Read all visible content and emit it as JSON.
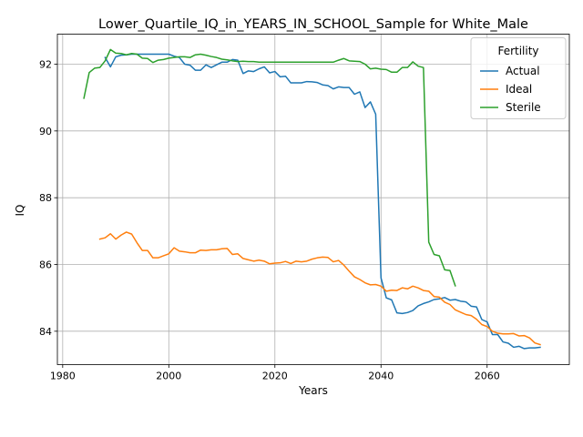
{
  "chart_data": {
    "type": "line",
    "title": "Lower_Quartile_IQ_in_YEARS_IN_SCHOOL_Sample for White_Male",
    "xlabel": "Years",
    "ylabel": "IQ",
    "xlim": [
      1979,
      2075.5
    ],
    "ylim": [
      83.0,
      92.9
    ],
    "xticks": [
      1980,
      2000,
      2020,
      2040,
      2060
    ],
    "yticks": [
      84,
      86,
      88,
      90,
      92
    ],
    "grid": true,
    "legend": {
      "title": "Fertility",
      "placement": "top-right"
    },
    "series": [
      {
        "name": "Actual",
        "color": "#1f77b4",
        "points": [
          [
            1988,
            92.2
          ],
          [
            1989,
            91.92
          ],
          [
            1990,
            92.22
          ],
          [
            1991,
            92.27
          ],
          [
            1992,
            92.28
          ],
          [
            1993,
            92.3
          ],
          [
            1994,
            92.3
          ],
          [
            1996,
            92.3
          ],
          [
            1998,
            92.3
          ],
          [
            2000,
            92.3
          ],
          [
            2001,
            92.24
          ],
          [
            2002,
            92.2
          ],
          [
            2003,
            92.0
          ],
          [
            2004,
            91.97
          ],
          [
            2005,
            91.82
          ],
          [
            2006,
            91.82
          ],
          [
            2007,
            91.98
          ],
          [
            2008,
            91.9
          ],
          [
            2009,
            91.98
          ],
          [
            2010,
            92.06
          ],
          [
            2011,
            92.06
          ],
          [
            2012,
            92.14
          ],
          [
            2013,
            92.12
          ],
          [
            2014,
            91.72
          ],
          [
            2015,
            91.8
          ],
          [
            2016,
            91.78
          ],
          [
            2017,
            91.86
          ],
          [
            2018,
            91.92
          ],
          [
            2019,
            91.74
          ],
          [
            2020,
            91.78
          ],
          [
            2021,
            91.62
          ],
          [
            2022,
            91.64
          ],
          [
            2023,
            91.44
          ],
          [
            2024,
            91.44
          ],
          [
            2025,
            91.44
          ],
          [
            2026,
            91.48
          ],
          [
            2027,
            91.47
          ],
          [
            2028,
            91.45
          ],
          [
            2029,
            91.38
          ],
          [
            2030,
            91.36
          ],
          [
            2031,
            91.26
          ],
          [
            2032,
            91.32
          ],
          [
            2033,
            91.3
          ],
          [
            2034,
            91.3
          ],
          [
            2035,
            91.1
          ],
          [
            2036,
            91.17
          ],
          [
            2037,
            90.7
          ],
          [
            2038,
            90.87
          ],
          [
            2039,
            90.5
          ],
          [
            2040,
            85.6
          ],
          [
            2041,
            85.0
          ],
          [
            2042,
            84.94
          ],
          [
            2043,
            84.55
          ],
          [
            2044,
            84.53
          ],
          [
            2045,
            84.56
          ],
          [
            2046,
            84.62
          ],
          [
            2047,
            84.76
          ],
          [
            2048,
            84.83
          ],
          [
            2049,
            84.88
          ],
          [
            2050,
            84.95
          ],
          [
            2051,
            84.97
          ],
          [
            2052,
            85.01
          ],
          [
            2053,
            84.93
          ],
          [
            2054,
            84.95
          ],
          [
            2055,
            84.9
          ],
          [
            2056,
            84.88
          ],
          [
            2057,
            84.75
          ],
          [
            2058,
            84.73
          ],
          [
            2059,
            84.35
          ],
          [
            2060,
            84.28
          ],
          [
            2061,
            83.9
          ],
          [
            2062,
            83.9
          ],
          [
            2063,
            83.68
          ],
          [
            2064,
            83.64
          ],
          [
            2065,
            83.52
          ],
          [
            2066,
            83.55
          ],
          [
            2067,
            83.48
          ],
          [
            2068,
            83.5
          ],
          [
            2069,
            83.5
          ],
          [
            2070,
            83.52
          ]
        ]
      },
      {
        "name": "Ideal",
        "color": "#ff7f0e",
        "points": [
          [
            1987,
            86.76
          ],
          [
            1988,
            86.8
          ],
          [
            1989,
            86.92
          ],
          [
            1990,
            86.76
          ],
          [
            1991,
            86.88
          ],
          [
            1992,
            86.97
          ],
          [
            1993,
            86.91
          ],
          [
            1994,
            86.65
          ],
          [
            1995,
            86.42
          ],
          [
            1996,
            86.42
          ],
          [
            1997,
            86.2
          ],
          [
            1998,
            86.2
          ],
          [
            1999,
            86.26
          ],
          [
            2000,
            86.32
          ],
          [
            2001,
            86.5
          ],
          [
            2002,
            86.4
          ],
          [
            2003,
            86.38
          ],
          [
            2004,
            86.35
          ],
          [
            2005,
            86.35
          ],
          [
            2006,
            86.43
          ],
          [
            2007,
            86.42
          ],
          [
            2008,
            86.44
          ],
          [
            2009,
            86.44
          ],
          [
            2010,
            86.47
          ],
          [
            2011,
            86.48
          ],
          [
            2012,
            86.3
          ],
          [
            2013,
            86.32
          ],
          [
            2014,
            86.18
          ],
          [
            2015,
            86.14
          ],
          [
            2016,
            86.1
          ],
          [
            2017,
            86.13
          ],
          [
            2018,
            86.1
          ],
          [
            2019,
            86.02
          ],
          [
            2020,
            86.04
          ],
          [
            2021,
            86.05
          ],
          [
            2022,
            86.09
          ],
          [
            2023,
            86.03
          ],
          [
            2024,
            86.1
          ],
          [
            2025,
            86.08
          ],
          [
            2026,
            86.1
          ],
          [
            2027,
            86.16
          ],
          [
            2028,
            86.2
          ],
          [
            2029,
            86.22
          ],
          [
            2030,
            86.21
          ],
          [
            2031,
            86.08
          ],
          [
            2032,
            86.12
          ],
          [
            2033,
            85.98
          ],
          [
            2034,
            85.8
          ],
          [
            2035,
            85.63
          ],
          [
            2036,
            85.55
          ],
          [
            2037,
            85.45
          ],
          [
            2038,
            85.39
          ],
          [
            2039,
            85.4
          ],
          [
            2040,
            85.35
          ],
          [
            2041,
            85.2
          ],
          [
            2042,
            85.23
          ],
          [
            2043,
            85.22
          ],
          [
            2044,
            85.3
          ],
          [
            2045,
            85.27
          ],
          [
            2046,
            85.35
          ],
          [
            2047,
            85.3
          ],
          [
            2048,
            85.22
          ],
          [
            2049,
            85.2
          ],
          [
            2050,
            85.04
          ],
          [
            2051,
            85.02
          ],
          [
            2052,
            84.87
          ],
          [
            2053,
            84.8
          ],
          [
            2054,
            84.64
          ],
          [
            2055,
            84.57
          ],
          [
            2056,
            84.5
          ],
          [
            2057,
            84.47
          ],
          [
            2058,
            84.36
          ],
          [
            2059,
            84.2
          ],
          [
            2060,
            84.14
          ],
          [
            2061,
            84.0
          ],
          [
            2062,
            83.94
          ],
          [
            2063,
            83.92
          ],
          [
            2064,
            83.92
          ],
          [
            2065,
            83.93
          ],
          [
            2066,
            83.86
          ],
          [
            2067,
            83.87
          ],
          [
            2068,
            83.8
          ],
          [
            2069,
            83.65
          ],
          [
            2070,
            83.6
          ]
        ]
      },
      {
        "name": "Sterile",
        "color": "#2ca02c",
        "points": [
          [
            1984,
            90.98
          ],
          [
            1985,
            91.75
          ],
          [
            1986,
            91.88
          ],
          [
            1987,
            91.9
          ],
          [
            1988,
            92.1
          ],
          [
            1989,
            92.44
          ],
          [
            1990,
            92.33
          ],
          [
            1991,
            92.32
          ],
          [
            1992,
            92.28
          ],
          [
            1993,
            92.32
          ],
          [
            1994,
            92.3
          ],
          [
            1995,
            92.18
          ],
          [
            1996,
            92.17
          ],
          [
            1997,
            92.05
          ],
          [
            1998,
            92.12
          ],
          [
            1999,
            92.14
          ],
          [
            2000,
            92.18
          ],
          [
            2001,
            92.2
          ],
          [
            2002,
            92.22
          ],
          [
            2003,
            92.22
          ],
          [
            2004,
            92.2
          ],
          [
            2005,
            92.28
          ],
          [
            2006,
            92.3
          ],
          [
            2007,
            92.27
          ],
          [
            2008,
            92.23
          ],
          [
            2009,
            92.2
          ],
          [
            2010,
            92.15
          ],
          [
            2011,
            92.13
          ],
          [
            2012,
            92.1
          ],
          [
            2013,
            92.08
          ],
          [
            2014,
            92.09
          ],
          [
            2015,
            92.08
          ],
          [
            2016,
            92.08
          ],
          [
            2017,
            92.06
          ],
          [
            2018,
            92.06
          ],
          [
            2020,
            92.06
          ],
          [
            2022,
            92.06
          ],
          [
            2024,
            92.06
          ],
          [
            2026,
            92.06
          ],
          [
            2028,
            92.06
          ],
          [
            2030,
            92.06
          ],
          [
            2031,
            92.06
          ],
          [
            2032,
            92.12
          ],
          [
            2033,
            92.17
          ],
          [
            2034,
            92.1
          ],
          [
            2035,
            92.09
          ],
          [
            2036,
            92.08
          ],
          [
            2037,
            92.0
          ],
          [
            2038,
            91.86
          ],
          [
            2039,
            91.88
          ],
          [
            2040,
            91.85
          ],
          [
            2041,
            91.84
          ],
          [
            2042,
            91.76
          ],
          [
            2043,
            91.76
          ],
          [
            2044,
            91.9
          ],
          [
            2045,
            91.9
          ],
          [
            2046,
            92.07
          ],
          [
            2047,
            91.94
          ],
          [
            2048,
            91.9
          ],
          [
            2049,
            86.67
          ],
          [
            2050,
            86.3
          ],
          [
            2051,
            86.26
          ],
          [
            2052,
            85.84
          ],
          [
            2053,
            85.82
          ],
          [
            2054,
            85.36
          ]
        ]
      }
    ]
  }
}
